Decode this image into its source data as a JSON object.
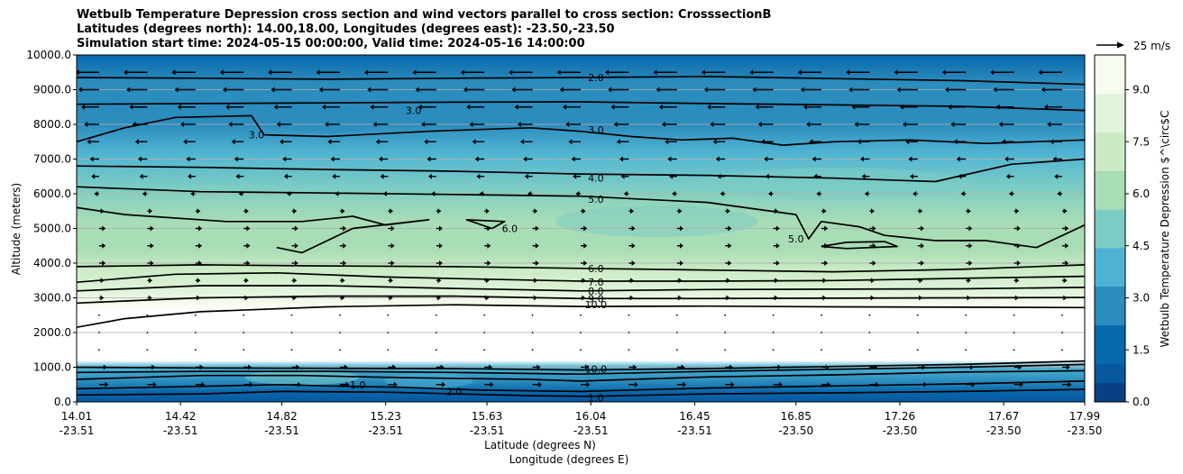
{
  "chart_data": {
    "type": "contourf",
    "title_lines": [
      "Wetbulb Temperature Depression cross section and wind vectors parallel to cross section: CrosssectionB",
      "Latitudes (degrees north): 14.00,18.00, Longitudes (degrees east): -23.50,-23.50",
      "Simulation start time: 2024-05-15 00:00:00, Valid time: 2024-05-16 14:00:00"
    ],
    "ylabel": "Altitude (meters)",
    "xlabel_lat": "Latitude (degrees N)",
    "xlabel_lon": "Longitude (degrees E)",
    "ylim": [
      0,
      10000
    ],
    "yticks": [
      "0.0",
      "1000.0",
      "2000.0",
      "3000.0",
      "4000.0",
      "5000.0",
      "6000.0",
      "7000.0",
      "8000.0",
      "9000.0",
      "10000.0"
    ],
    "xlim": [
      14.01,
      17.99
    ],
    "xticks": [
      {
        "lat": "14.01",
        "lon": "-23.51",
        "value": 14.01
      },
      {
        "lat": "14.42",
        "lon": "-23.51",
        "value": 14.42
      },
      {
        "lat": "14.82",
        "lon": "-23.51",
        "value": 14.82
      },
      {
        "lat": "15.23",
        "lon": "-23.51",
        "value": 15.23
      },
      {
        "lat": "15.63",
        "lon": "-23.51",
        "value": 15.63
      },
      {
        "lat": "16.04",
        "lon": "-23.51",
        "value": 16.04
      },
      {
        "lat": "16.45",
        "lon": "-23.51",
        "value": 16.45
      },
      {
        "lat": "16.85",
        "lon": "-23.50",
        "value": 16.85
      },
      {
        "lat": "17.26",
        "lon": "-23.50",
        "value": 17.26
      },
      {
        "lat": "17.67",
        "lon": "-23.50",
        "value": 17.67
      },
      {
        "lat": "17.99",
        "lon": "-23.50",
        "value": 17.99
      }
    ],
    "colorbar": {
      "label": "Wetbulb Temperature Depression $^\\circ$C",
      "min": 0,
      "max": 10,
      "ticks": [
        "0.0",
        "1.5",
        "3.0",
        "4.5",
        "6.0",
        "7.5",
        "9.0"
      ],
      "tick_values": [
        0,
        1.5,
        3,
        4.5,
        6,
        7.5,
        9
      ]
    },
    "quiver_key": "25 m/s",
    "contour_labels": [
      {
        "text": "2.0",
        "x": 16.06,
        "alt": 9350
      },
      {
        "text": "3.0",
        "x": 14.72,
        "alt": 7700
      },
      {
        "text": "3.0",
        "x": 15.34,
        "alt": 8400
      },
      {
        "text": "3.0",
        "x": 16.06,
        "alt": 7850
      },
      {
        "text": "4.0",
        "x": 16.06,
        "alt": 6450
      },
      {
        "text": "5.0",
        "x": 16.06,
        "alt": 5850
      },
      {
        "text": "6.0",
        "x": 15.72,
        "alt": 5000
      },
      {
        "text": "5.0",
        "x": 16.85,
        "alt": 4700
      },
      {
        "text": "6.0",
        "x": 16.06,
        "alt": 3850
      },
      {
        "text": "7.0",
        "x": 16.06,
        "alt": 3450
      },
      {
        "text": "8.0",
        "x": 16.06,
        "alt": 3200
      },
      {
        "text": "9.0",
        "x": 16.06,
        "alt": 2970
      },
      {
        "text": "10.0",
        "x": 16.06,
        "alt": 2800
      },
      {
        "text": "10.0",
        "x": 16.06,
        "alt": 950
      },
      {
        "text": "1.0",
        "x": 16.06,
        "alt": 120
      },
      {
        "text": "1.0",
        "x": 15.12,
        "alt": 500
      },
      {
        "text": "2.0",
        "x": 15.5,
        "alt": 300
      }
    ],
    "contour_levels": [
      {
        "level": 2,
        "points": [
          [
            14.01,
            9350
          ],
          [
            14.5,
            9330
          ],
          [
            15.0,
            9300
          ],
          [
            15.5,
            9330
          ],
          [
            16.0,
            9350
          ],
          [
            16.5,
            9380
          ],
          [
            17.0,
            9320
          ],
          [
            17.5,
            9260
          ],
          [
            17.99,
            9150
          ]
        ]
      },
      {
        "level": 3,
        "points": [
          [
            14.01,
            8580
          ],
          [
            14.5,
            8600
          ],
          [
            15.0,
            8620
          ],
          [
            15.5,
            8640
          ],
          [
            16.0,
            8650
          ],
          [
            16.5,
            8600
          ],
          [
            17.0,
            8560
          ],
          [
            17.5,
            8520
          ],
          [
            17.99,
            8400
          ]
        ]
      },
      {
        "level": 3,
        "points": [
          [
            14.01,
            7500
          ],
          [
            14.2,
            7900
          ],
          [
            14.4,
            8200
          ],
          [
            14.7,
            8250
          ],
          [
            14.75,
            7700
          ],
          [
            15.0,
            7650
          ],
          [
            15.4,
            7800
          ],
          [
            15.8,
            7900
          ],
          [
            16.0,
            7800
          ],
          [
            16.2,
            7650
          ],
          [
            16.4,
            7550
          ],
          [
            16.6,
            7600
          ],
          [
            16.8,
            7400
          ],
          [
            17.0,
            7500
          ],
          [
            17.3,
            7550
          ],
          [
            17.6,
            7450
          ],
          [
            17.99,
            7550
          ]
        ]
      },
      {
        "level": 4,
        "points": [
          [
            14.01,
            6800
          ],
          [
            14.5,
            6760
          ],
          [
            15.0,
            6700
          ],
          [
            15.5,
            6650
          ],
          [
            16.0,
            6570
          ],
          [
            16.5,
            6530
          ],
          [
            17.0,
            6450
          ],
          [
            17.4,
            6350
          ],
          [
            17.7,
            6850
          ],
          [
            17.99,
            7000
          ]
        ]
      },
      {
        "level": 5,
        "points": [
          [
            14.01,
            6200
          ],
          [
            14.5,
            6060
          ],
          [
            15.0,
            6020
          ],
          [
            15.5,
            5980
          ],
          [
            16.0,
            5930
          ],
          [
            16.5,
            5750
          ],
          [
            16.85,
            5400
          ],
          [
            16.9,
            4700
          ],
          [
            16.95,
            5200
          ],
          [
            17.1,
            5050
          ],
          [
            17.2,
            4800
          ],
          [
            17.4,
            4650
          ],
          [
            17.6,
            4650
          ],
          [
            17.8,
            4450
          ],
          [
            17.99,
            5100
          ]
        ]
      },
      {
        "level": 5,
        "points": [
          [
            16.95,
            4480
          ],
          [
            17.05,
            4600
          ],
          [
            17.2,
            4620
          ],
          [
            17.25,
            4480
          ],
          [
            17.05,
            4420
          ],
          [
            16.95,
            4480
          ]
        ]
      },
      {
        "level": 6,
        "points": [
          [
            14.01,
            5600
          ],
          [
            14.2,
            5400
          ],
          [
            14.6,
            5200
          ],
          [
            14.9,
            5200
          ],
          [
            15.1,
            5350
          ],
          [
            15.23,
            5100
          ],
          [
            15.4,
            5250
          ],
          [
            15.1,
            5000
          ],
          [
            14.9,
            4300
          ],
          [
            14.8,
            4450
          ]
        ]
      },
      {
        "level": 6,
        "points": [
          [
            15.65,
            5000
          ],
          [
            15.7,
            5200
          ],
          [
            15.55,
            5250
          ],
          [
            15.65,
            5000
          ]
        ]
      },
      {
        "level": 6,
        "points": [
          [
            14.01,
            3900
          ],
          [
            14.5,
            3950
          ],
          [
            15.0,
            3920
          ],
          [
            15.5,
            3900
          ],
          [
            16.0,
            3850
          ],
          [
            16.5,
            3800
          ],
          [
            17.0,
            3750
          ],
          [
            17.5,
            3820
          ],
          [
            17.99,
            3950
          ]
        ]
      },
      {
        "level": 7,
        "points": [
          [
            14.01,
            3450
          ],
          [
            14.4,
            3680
          ],
          [
            14.8,
            3720
          ],
          [
            15.23,
            3600
          ],
          [
            15.6,
            3540
          ],
          [
            16.0,
            3480
          ],
          [
            16.5,
            3480
          ],
          [
            17.0,
            3500
          ],
          [
            17.5,
            3560
          ],
          [
            17.99,
            3620
          ]
        ]
      },
      {
        "level": 8,
        "points": [
          [
            14.01,
            3200
          ],
          [
            14.5,
            3350
          ],
          [
            15.0,
            3350
          ],
          [
            15.5,
            3270
          ],
          [
            16.0,
            3200
          ],
          [
            16.5,
            3240
          ],
          [
            17.0,
            3250
          ],
          [
            17.5,
            3260
          ],
          [
            17.99,
            3300
          ]
        ]
      },
      {
        "level": 9,
        "points": [
          [
            14.01,
            2850
          ],
          [
            14.5,
            3000
          ],
          [
            15.0,
            3050
          ],
          [
            15.5,
            3050
          ],
          [
            16.0,
            2980
          ],
          [
            16.5,
            2980
          ],
          [
            17.0,
            2990
          ],
          [
            17.5,
            3000
          ],
          [
            17.99,
            3010
          ]
        ]
      },
      {
        "level": 10,
        "points": [
          [
            14.01,
            2150
          ],
          [
            14.2,
            2400
          ],
          [
            14.5,
            2600
          ],
          [
            15.0,
            2740
          ],
          [
            15.5,
            2800
          ],
          [
            16.0,
            2750
          ],
          [
            16.5,
            2760
          ],
          [
            17.0,
            2740
          ],
          [
            17.5,
            2730
          ],
          [
            17.99,
            2720
          ]
        ]
      },
      {
        "level": 10,
        "points": [
          [
            14.01,
            1000
          ],
          [
            14.5,
            980
          ],
          [
            15.0,
            970
          ],
          [
            15.5,
            960
          ],
          [
            16.0,
            920
          ],
          [
            16.5,
            960
          ],
          [
            17.0,
            1020
          ],
          [
            17.5,
            1080
          ],
          [
            17.99,
            1180
          ]
        ]
      },
      {
        "level": 8,
        "points": [
          [
            14.01,
            850
          ],
          [
            14.5,
            880
          ],
          [
            15.0,
            880
          ],
          [
            15.5,
            850
          ],
          [
            16.0,
            800
          ],
          [
            16.5,
            880
          ],
          [
            17.0,
            940
          ],
          [
            17.5,
            1000
          ],
          [
            17.99,
            1080
          ]
        ]
      },
      {
        "level": 5,
        "points": [
          [
            14.01,
            650
          ],
          [
            14.5,
            760
          ],
          [
            14.9,
            760
          ],
          [
            15.3,
            700
          ],
          [
            15.8,
            650
          ],
          [
            16.0,
            600
          ],
          [
            16.5,
            720
          ],
          [
            17.0,
            780
          ],
          [
            17.5,
            860
          ],
          [
            17.99,
            900
          ]
        ]
      },
      {
        "level": 2,
        "points": [
          [
            14.01,
            380
          ],
          [
            14.5,
            450
          ],
          [
            14.82,
            500
          ],
          [
            15.0,
            460
          ],
          [
            15.3,
            420
          ],
          [
            15.6,
            340
          ],
          [
            16.0,
            300
          ],
          [
            16.5,
            400
          ],
          [
            17.0,
            460
          ],
          [
            17.5,
            520
          ],
          [
            17.99,
            600
          ]
        ]
      },
      {
        "level": 1,
        "points": [
          [
            14.01,
            200
          ],
          [
            14.5,
            230
          ],
          [
            14.82,
            300
          ],
          [
            15.23,
            280
          ],
          [
            15.8,
            180
          ],
          [
            16.04,
            160
          ],
          [
            16.5,
            230
          ],
          [
            17.0,
            260
          ],
          [
            17.5,
            300
          ],
          [
            17.99,
            360
          ]
        ]
      }
    ],
    "wind_vectors": [
      {
        "alt": 9500,
        "u": -7
      },
      {
        "alt": 9000,
        "u": -6
      },
      {
        "alt": 8500,
        "u": -5
      },
      {
        "alt": 8000,
        "u": -4
      },
      {
        "alt": 7500,
        "u": -3
      },
      {
        "alt": 7000,
        "u": -2
      },
      {
        "alt": 6500,
        "u": -1.5
      },
      {
        "alt": 6000,
        "u": -0.5
      },
      {
        "alt": 5500,
        "u": 0.5
      },
      {
        "alt": 5000,
        "u": 1
      },
      {
        "alt": 4500,
        "u": 1
      },
      {
        "alt": 4000,
        "u": 1
      },
      {
        "alt": 3500,
        "u": 0.5
      },
      {
        "alt": 3000,
        "u": 0.4
      },
      {
        "alt": 2500,
        "u": 0.2
      },
      {
        "alt": 2000,
        "u": 0.2
      },
      {
        "alt": 1500,
        "u": 0.2
      },
      {
        "alt": 1000,
        "u": 1.5
      },
      {
        "alt": 500,
        "u": 2
      }
    ]
  }
}
